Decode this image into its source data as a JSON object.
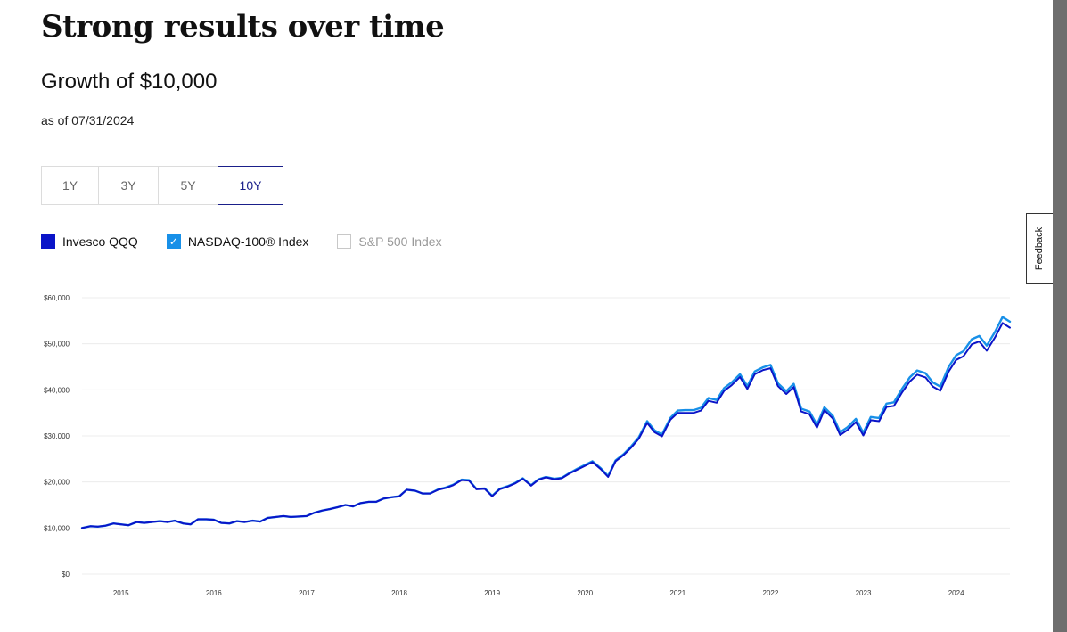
{
  "page": {
    "section_title": "Strong results over time",
    "chart_title": "Growth of $10,000",
    "as_of": "as of 07/31/2024",
    "feedback_label": "Feedback"
  },
  "tabs": [
    {
      "label": "1Y",
      "active": false
    },
    {
      "label": "3Y",
      "active": false
    },
    {
      "label": "5Y",
      "active": false
    },
    {
      "label": "10Y",
      "active": true
    }
  ],
  "legend": [
    {
      "label": "Invesco QQQ",
      "checked": true,
      "color": "#0a14c8"
    },
    {
      "label": "NASDAQ-100® Index",
      "checked": true,
      "color": "#1890e8"
    },
    {
      "label": "S&P 500 Index",
      "checked": false,
      "color": "#c8c8c8"
    }
  ],
  "chart_data": {
    "type": "line",
    "title": "Growth of $10,000",
    "ylim": [
      0,
      60000
    ],
    "yticks": [
      0,
      10000,
      20000,
      30000,
      40000,
      50000,
      60000
    ],
    "ytick_labels": [
      "$0",
      "$10,000",
      "$20,000",
      "$30,000",
      "$40,000",
      "$50,000",
      "$60,000"
    ],
    "xlim": [
      2014.58,
      2024.58
    ],
    "xticks": [
      2015,
      2016,
      2017,
      2018,
      2019,
      2020,
      2021,
      2022,
      2023,
      2024
    ],
    "xtick_labels": [
      "2015",
      "2016",
      "2017",
      "2018",
      "2019",
      "2020",
      "2021",
      "2022",
      "2023",
      "2024"
    ],
    "grid": true,
    "series": [
      {
        "name": "Invesco QQQ",
        "color": "#0a14c8",
        "points": [
          [
            2014.58,
            10000
          ],
          [
            2014.67,
            10400
          ],
          [
            2014.75,
            10300
          ],
          [
            2014.83,
            10500
          ],
          [
            2014.92,
            11000
          ],
          [
            2015.0,
            10800
          ],
          [
            2015.08,
            10600
          ],
          [
            2015.17,
            11300
          ],
          [
            2015.25,
            11100
          ],
          [
            2015.33,
            11300
          ],
          [
            2015.42,
            11500
          ],
          [
            2015.5,
            11300
          ],
          [
            2015.58,
            11600
          ],
          [
            2015.67,
            11000
          ],
          [
            2015.75,
            10800
          ],
          [
            2015.83,
            11900
          ],
          [
            2015.92,
            11900
          ],
          [
            2016.0,
            11800
          ],
          [
            2016.08,
            11100
          ],
          [
            2016.17,
            11000
          ],
          [
            2016.25,
            11500
          ],
          [
            2016.33,
            11300
          ],
          [
            2016.42,
            11600
          ],
          [
            2016.5,
            11400
          ],
          [
            2016.58,
            12200
          ],
          [
            2016.67,
            12400
          ],
          [
            2016.75,
            12600
          ],
          [
            2016.83,
            12400
          ],
          [
            2016.92,
            12500
          ],
          [
            2017.0,
            12600
          ],
          [
            2017.08,
            13300
          ],
          [
            2017.17,
            13800
          ],
          [
            2017.25,
            14100
          ],
          [
            2017.33,
            14500
          ],
          [
            2017.42,
            15000
          ],
          [
            2017.5,
            14700
          ],
          [
            2017.58,
            15400
          ],
          [
            2017.67,
            15700
          ],
          [
            2017.75,
            15700
          ],
          [
            2017.83,
            16400
          ],
          [
            2017.92,
            16700
          ],
          [
            2018.0,
            16900
          ],
          [
            2018.08,
            18300
          ],
          [
            2018.17,
            18100
          ],
          [
            2018.25,
            17500
          ],
          [
            2018.33,
            17500
          ],
          [
            2018.42,
            18300
          ],
          [
            2018.5,
            18700
          ],
          [
            2018.58,
            19300
          ],
          [
            2018.67,
            20400
          ],
          [
            2018.75,
            20300
          ],
          [
            2018.83,
            18400
          ],
          [
            2018.92,
            18500
          ],
          [
            2019.0,
            16900
          ],
          [
            2019.08,
            18400
          ],
          [
            2019.17,
            19000
          ],
          [
            2019.25,
            19700
          ],
          [
            2019.33,
            20700
          ],
          [
            2019.42,
            19200
          ],
          [
            2019.5,
            20500
          ],
          [
            2019.58,
            21000
          ],
          [
            2019.67,
            20600
          ],
          [
            2019.75,
            20800
          ],
          [
            2019.83,
            21800
          ],
          [
            2019.92,
            22700
          ],
          [
            2020.0,
            23500
          ],
          [
            2020.08,
            24300
          ],
          [
            2020.17,
            22800
          ],
          [
            2020.25,
            21100
          ],
          [
            2020.33,
            24500
          ],
          [
            2020.42,
            25900
          ],
          [
            2020.5,
            27500
          ],
          [
            2020.58,
            29400
          ],
          [
            2020.67,
            32800
          ],
          [
            2020.75,
            30800
          ],
          [
            2020.83,
            29900
          ],
          [
            2020.92,
            33500
          ],
          [
            2021.0,
            35000
          ],
          [
            2021.08,
            35000
          ],
          [
            2021.17,
            35000
          ],
          [
            2021.25,
            35500
          ],
          [
            2021.33,
            37600
          ],
          [
            2021.42,
            37200
          ],
          [
            2021.5,
            39800
          ],
          [
            2021.58,
            41000
          ],
          [
            2021.67,
            42800
          ],
          [
            2021.75,
            40200
          ],
          [
            2021.83,
            43400
          ],
          [
            2021.92,
            44300
          ],
          [
            2022.0,
            44700
          ],
          [
            2022.08,
            40800
          ],
          [
            2022.17,
            39100
          ],
          [
            2022.25,
            40600
          ],
          [
            2022.33,
            35300
          ],
          [
            2022.42,
            34700
          ],
          [
            2022.5,
            31800
          ],
          [
            2022.58,
            35600
          ],
          [
            2022.67,
            33800
          ],
          [
            2022.75,
            30200
          ],
          [
            2022.83,
            31300
          ],
          [
            2022.92,
            33000
          ],
          [
            2023.0,
            30100
          ],
          [
            2023.08,
            33400
          ],
          [
            2023.17,
            33200
          ],
          [
            2023.25,
            36300
          ],
          [
            2023.33,
            36500
          ],
          [
            2023.42,
            39500
          ],
          [
            2023.5,
            41800
          ],
          [
            2023.58,
            43300
          ],
          [
            2023.67,
            42700
          ],
          [
            2023.75,
            40700
          ],
          [
            2023.83,
            39800
          ],
          [
            2023.92,
            44000
          ],
          [
            2024.0,
            46500
          ],
          [
            2024.08,
            47300
          ],
          [
            2024.17,
            49900
          ],
          [
            2024.25,
            50500
          ],
          [
            2024.33,
            48500
          ],
          [
            2024.42,
            51400
          ],
          [
            2024.5,
            54500
          ],
          [
            2024.58,
            53500
          ]
        ]
      },
      {
        "name": "NASDAQ-100® Index",
        "color": "#1890e8",
        "points": [
          [
            2014.58,
            10000
          ],
          [
            2014.67,
            10400
          ],
          [
            2014.75,
            10300
          ],
          [
            2014.83,
            10500
          ],
          [
            2014.92,
            11000
          ],
          [
            2015.0,
            10800
          ],
          [
            2015.08,
            10600
          ],
          [
            2015.17,
            11300
          ],
          [
            2015.25,
            11100
          ],
          [
            2015.33,
            11300
          ],
          [
            2015.42,
            11500
          ],
          [
            2015.5,
            11300
          ],
          [
            2015.58,
            11600
          ],
          [
            2015.67,
            11000
          ],
          [
            2015.75,
            10800
          ],
          [
            2015.83,
            11900
          ],
          [
            2015.92,
            11900
          ],
          [
            2016.0,
            11800
          ],
          [
            2016.08,
            11100
          ],
          [
            2016.17,
            11000
          ],
          [
            2016.25,
            11500
          ],
          [
            2016.33,
            11300
          ],
          [
            2016.42,
            11600
          ],
          [
            2016.5,
            11400
          ],
          [
            2016.58,
            12200
          ],
          [
            2016.67,
            12400
          ],
          [
            2016.75,
            12600
          ],
          [
            2016.83,
            12400
          ],
          [
            2016.92,
            12500
          ],
          [
            2017.0,
            12600
          ],
          [
            2017.08,
            13300
          ],
          [
            2017.17,
            13800
          ],
          [
            2017.25,
            14100
          ],
          [
            2017.33,
            14500
          ],
          [
            2017.42,
            15000
          ],
          [
            2017.5,
            14700
          ],
          [
            2017.58,
            15400
          ],
          [
            2017.67,
            15700
          ],
          [
            2017.75,
            15700
          ],
          [
            2017.83,
            16400
          ],
          [
            2017.92,
            16700
          ],
          [
            2018.0,
            16900
          ],
          [
            2018.08,
            18300
          ],
          [
            2018.17,
            18100
          ],
          [
            2018.25,
            17500
          ],
          [
            2018.33,
            17500
          ],
          [
            2018.42,
            18400
          ],
          [
            2018.5,
            18800
          ],
          [
            2018.58,
            19400
          ],
          [
            2018.67,
            20500
          ],
          [
            2018.75,
            20400
          ],
          [
            2018.83,
            18500
          ],
          [
            2018.92,
            18600
          ],
          [
            2019.0,
            17000
          ],
          [
            2019.08,
            18500
          ],
          [
            2019.17,
            19100
          ],
          [
            2019.25,
            19800
          ],
          [
            2019.33,
            20800
          ],
          [
            2019.42,
            19300
          ],
          [
            2019.5,
            20600
          ],
          [
            2019.58,
            21100
          ],
          [
            2019.67,
            20700
          ],
          [
            2019.75,
            20900
          ],
          [
            2019.83,
            21900
          ],
          [
            2019.92,
            22900
          ],
          [
            2020.0,
            23700
          ],
          [
            2020.08,
            24500
          ],
          [
            2020.17,
            23000
          ],
          [
            2020.25,
            21300
          ],
          [
            2020.33,
            24700
          ],
          [
            2020.42,
            26100
          ],
          [
            2020.5,
            27800
          ],
          [
            2020.58,
            29700
          ],
          [
            2020.67,
            33200
          ],
          [
            2020.75,
            31200
          ],
          [
            2020.83,
            30300
          ],
          [
            2020.92,
            33900
          ],
          [
            2021.0,
            35500
          ],
          [
            2021.08,
            35600
          ],
          [
            2021.17,
            35600
          ],
          [
            2021.25,
            36100
          ],
          [
            2021.33,
            38200
          ],
          [
            2021.42,
            37800
          ],
          [
            2021.5,
            40400
          ],
          [
            2021.58,
            41600
          ],
          [
            2021.67,
            43400
          ],
          [
            2021.75,
            40800
          ],
          [
            2021.83,
            44000
          ],
          [
            2021.92,
            44900
          ],
          [
            2022.0,
            45400
          ],
          [
            2022.08,
            41400
          ],
          [
            2022.17,
            39700
          ],
          [
            2022.25,
            41300
          ],
          [
            2022.33,
            35900
          ],
          [
            2022.42,
            35300
          ],
          [
            2022.5,
            32400
          ],
          [
            2022.58,
            36200
          ],
          [
            2022.67,
            34400
          ],
          [
            2022.75,
            30800
          ],
          [
            2022.83,
            31900
          ],
          [
            2022.92,
            33700
          ],
          [
            2023.0,
            30700
          ],
          [
            2023.08,
            34100
          ],
          [
            2023.17,
            33900
          ],
          [
            2023.25,
            37000
          ],
          [
            2023.33,
            37300
          ],
          [
            2023.42,
            40300
          ],
          [
            2023.5,
            42700
          ],
          [
            2023.58,
            44200
          ],
          [
            2023.67,
            43600
          ],
          [
            2023.75,
            41600
          ],
          [
            2023.83,
            40700
          ],
          [
            2023.92,
            45000
          ],
          [
            2024.0,
            47500
          ],
          [
            2024.08,
            48400
          ],
          [
            2024.17,
            51000
          ],
          [
            2024.25,
            51700
          ],
          [
            2024.33,
            49600
          ],
          [
            2024.42,
            52600
          ],
          [
            2024.5,
            55800
          ],
          [
            2024.58,
            54800
          ]
        ]
      }
    ]
  }
}
